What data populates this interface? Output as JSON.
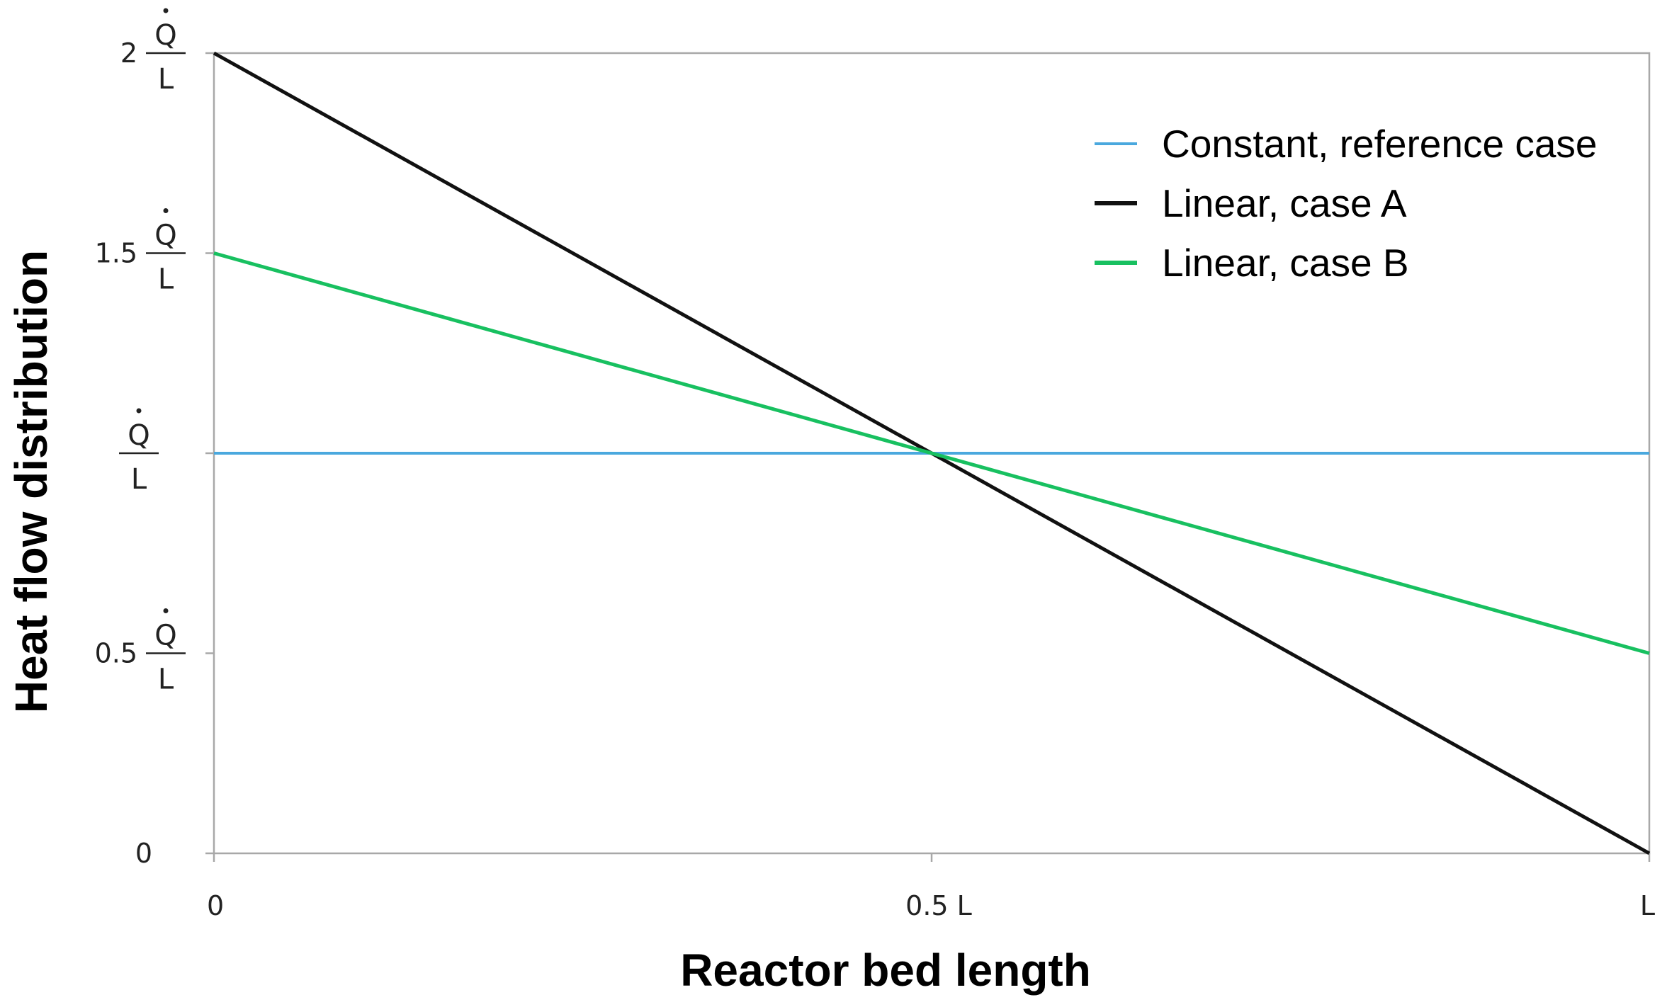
{
  "chart_data": {
    "type": "line",
    "title": "",
    "xlabel": "Reactor bed length",
    "ylabel": "Heat flow distribution",
    "xlim": [
      0,
      1
    ],
    "ylim": [
      0,
      2
    ],
    "grid": false,
    "legend_position": "top-right",
    "x_ticks": [
      {
        "value": 0,
        "label": "0"
      },
      {
        "value": 0.5,
        "label": "0.5 L"
      },
      {
        "value": 1,
        "label": "L"
      }
    ],
    "y_ticks": [
      {
        "value": 0,
        "coef": "0",
        "fraction": false
      },
      {
        "value": 0.5,
        "coef": "0.5",
        "fraction": true
      },
      {
        "value": 1,
        "coef": "",
        "fraction": true
      },
      {
        "value": 1.5,
        "coef": "1.5",
        "fraction": true
      },
      {
        "value": 2,
        "coef": "2",
        "fraction": true
      }
    ],
    "fraction": {
      "numerator": "Q",
      "denominator": "L"
    },
    "series": [
      {
        "name": "Constant, reference case",
        "color": "#4aa8de",
        "x": [
          0,
          1
        ],
        "y": [
          1,
          1
        ]
      },
      {
        "name": "Linear, case A",
        "color": "#111111",
        "x": [
          0,
          1
        ],
        "y": [
          2,
          0
        ]
      },
      {
        "name": "Linear, case B",
        "color": "#18c060",
        "x": [
          0,
          1
        ],
        "y": [
          1.5,
          0.5
        ]
      }
    ]
  }
}
